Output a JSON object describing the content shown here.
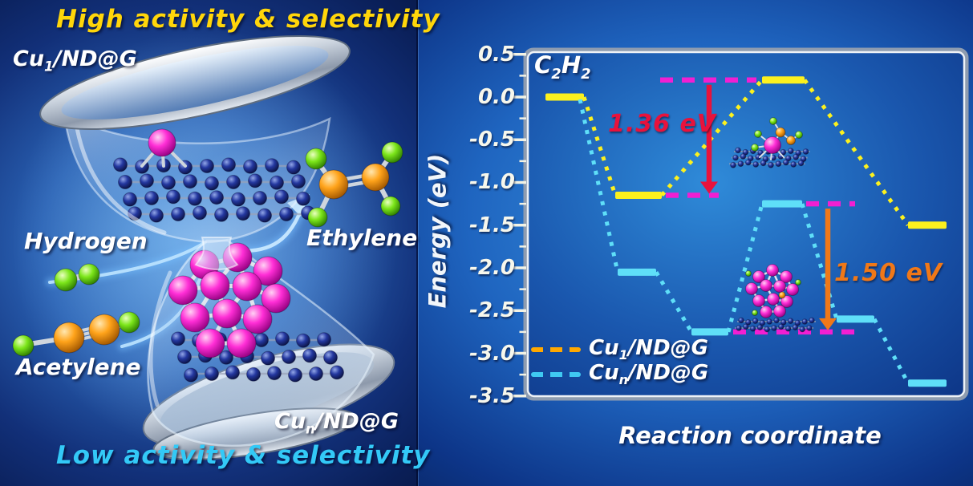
{
  "left_panel": {
    "top_caption": "High activity & selectivity",
    "bottom_caption": "Low activity & selectivity",
    "cu1_label": {
      "base": "Cu",
      "sub": "1",
      "suffix": "/ND@G"
    },
    "cun_label": {
      "base": "Cu",
      "sub": "n",
      "suffix": "/ND@G"
    },
    "hydrogen_label": "Hydrogen",
    "acetylene_label": "Acetylene",
    "ethylene_label": "Ethylene",
    "colors": {
      "top_caption": "#FFD60A",
      "bottom_caption": "#33C9F7",
      "label_text": "#FFFFFF",
      "atom_green": "#66DC05",
      "atom_orange": "#FF9E00",
      "atom_copper_magenta": "#FF24D0",
      "atom_carbon_navy": "#1A2B8F"
    }
  },
  "chart": {
    "xlabel": "Reaction coordinate",
    "ylabel": "Energy (eV)",
    "start_species": {
      "c": "C",
      "sub1": "2",
      "h": "H",
      "sub2": "2"
    },
    "ytick_labels": [
      "0.5",
      "0.0",
      "-0.5",
      "-1.0",
      "-1.5",
      "-2.0",
      "-2.5",
      "-3.0",
      "-3.5"
    ],
    "legend": [
      {
        "base": "Cu",
        "sub": "1",
        "suffix": "/ND@G",
        "dash_color": "#FFA800"
      },
      {
        "base": "Cu",
        "sub": "n",
        "suffix": "/ND@G",
        "dash_color": "#3FC9F2"
      }
    ],
    "annotations": [
      {
        "text": "1.36 eV",
        "color": "#E8123C"
      },
      {
        "text": "1.50 eV",
        "color": "#F07818"
      }
    ]
  },
  "chart_data": {
    "type": "line",
    "subtype": "reaction-energy-profile",
    "title": "",
    "xlabel": "Reaction coordinate",
    "ylabel": "Energy (eV)",
    "ylim": [
      -3.5,
      0.5
    ],
    "yticks": [
      0.5,
      0,
      -0.5,
      -1,
      -1.5,
      -2,
      -2.5,
      -3,
      -3.5
    ],
    "grid": false,
    "legend_position": "lower-left",
    "start_label": "C2H2",
    "marker_dash_color": "#F11FD2",
    "series": [
      {
        "name": "Cu1/ND@G",
        "line_color": "#FCF11E",
        "legend_dash_color": "#FFA800",
        "levels_eV": [
          0.0,
          -1.15,
          0.2,
          -1.5
        ],
        "barrier_label": "1.36 eV",
        "barrier_eV": 1.36,
        "barrier_from_eV": -1.15,
        "barrier_to_eV": 0.2
      },
      {
        "name": "Cun/ND@G",
        "line_color": "#5FDFF8",
        "legend_dash_color": "#3FC9F2",
        "levels_eV": [
          0.0,
          -2.05,
          -2.75,
          -1.25,
          -2.6,
          -3.35
        ],
        "barrier_label": "1.50 eV",
        "barrier_eV": 1.5,
        "barrier_from_eV": -2.75,
        "barrier_to_eV": -1.25
      }
    ]
  }
}
